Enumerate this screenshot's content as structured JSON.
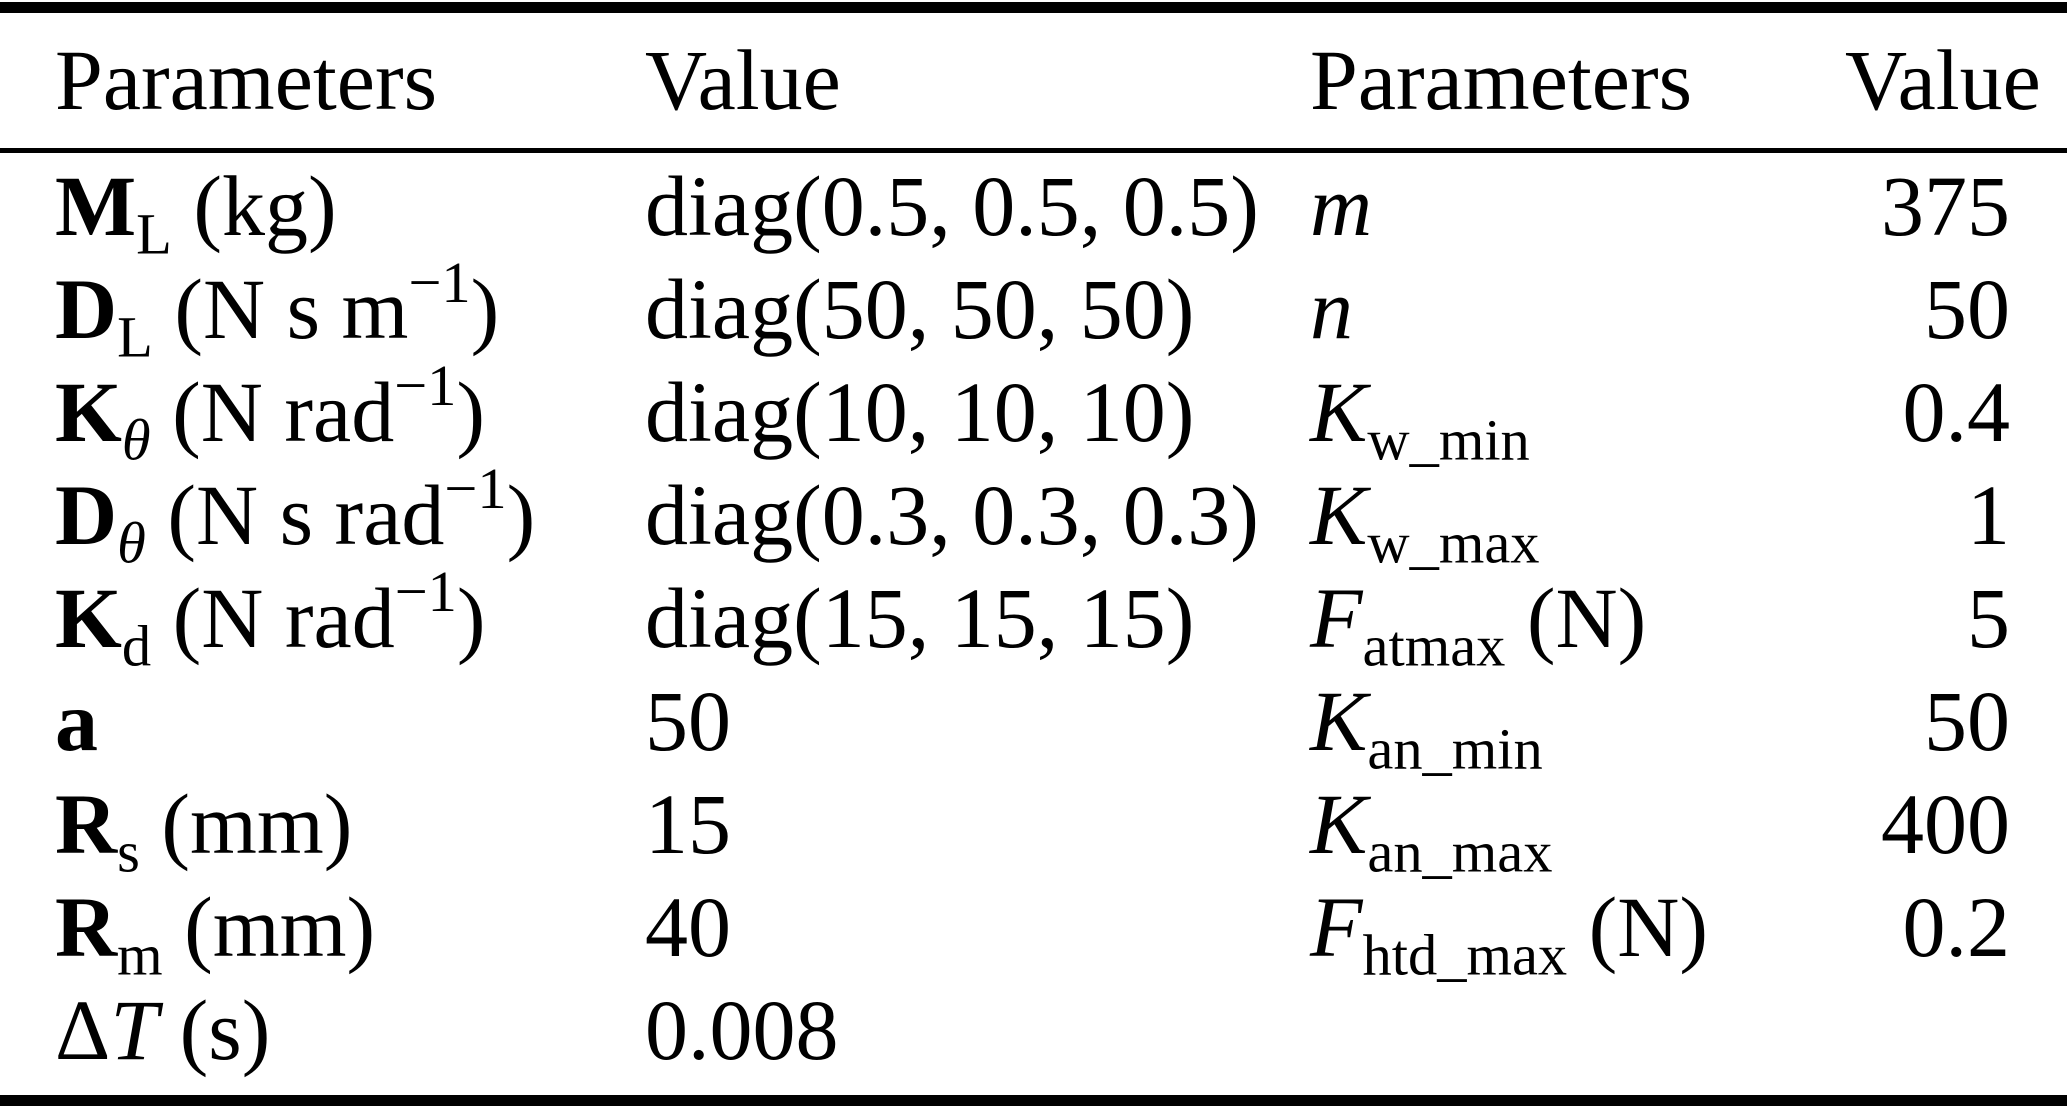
{
  "table": {
    "headers": [
      "Parameters",
      "Value",
      "Parameters",
      "Value"
    ],
    "rows": [
      {
        "left_param": [
          {
            "t": "M",
            "s": "b"
          },
          {
            "t": "L",
            "s": "sub"
          },
          {
            "t": " (kg)",
            "s": "r"
          }
        ],
        "left_value": "diag(0.5, 0.5, 0.5)",
        "right_param": [
          {
            "t": "m",
            "s": "i"
          }
        ],
        "right_value": "375"
      },
      {
        "left_param": [
          {
            "t": "D",
            "s": "b"
          },
          {
            "t": "L",
            "s": "sub"
          },
          {
            "t": " (N s m",
            "s": "r"
          },
          {
            "t": "−1",
            "s": "sup"
          },
          {
            "t": ")",
            "s": "r"
          }
        ],
        "left_value": "diag(50, 50, 50)",
        "right_param": [
          {
            "t": "n",
            "s": "i"
          }
        ],
        "right_value": "50"
      },
      {
        "left_param": [
          {
            "t": "K",
            "s": "b"
          },
          {
            "t": "θ",
            "s": "subi"
          },
          {
            "t": " (N rad",
            "s": "r"
          },
          {
            "t": "−1",
            "s": "sup"
          },
          {
            "t": ")",
            "s": "r"
          }
        ],
        "left_value": "diag(10, 10, 10)",
        "right_param": [
          {
            "t": "K",
            "s": "i"
          },
          {
            "t": "w_min",
            "s": "sub"
          }
        ],
        "right_value": "0.4"
      },
      {
        "left_param": [
          {
            "t": "D",
            "s": "b"
          },
          {
            "t": "θ",
            "s": "subi"
          },
          {
            "t": " (N s rad",
            "s": "r"
          },
          {
            "t": "−1",
            "s": "sup"
          },
          {
            "t": ")",
            "s": "r"
          }
        ],
        "left_value": "diag(0.3, 0.3, 0.3)",
        "right_param": [
          {
            "t": "K",
            "s": "i"
          },
          {
            "t": "w_max",
            "s": "sub"
          }
        ],
        "right_value": "1"
      },
      {
        "left_param": [
          {
            "t": "K",
            "s": "b"
          },
          {
            "t": "d",
            "s": "sub"
          },
          {
            "t": " (N rad",
            "s": "r"
          },
          {
            "t": "−1",
            "s": "sup"
          },
          {
            "t": ")",
            "s": "r"
          }
        ],
        "left_value": "diag(15, 15, 15)",
        "right_param": [
          {
            "t": "F",
            "s": "i"
          },
          {
            "t": "atmax",
            "s": "sub"
          },
          {
            "t": " (N)",
            "s": "r"
          }
        ],
        "right_value": "5"
      },
      {
        "left_param": [
          {
            "t": "a",
            "s": "b"
          }
        ],
        "left_value": "50",
        "right_param": [
          {
            "t": "K",
            "s": "i"
          },
          {
            "t": "an_min",
            "s": "sub"
          }
        ],
        "right_value": "50"
      },
      {
        "left_param": [
          {
            "t": "R",
            "s": "b"
          },
          {
            "t": "s",
            "s": "sub"
          },
          {
            "t": " (mm)",
            "s": "r"
          }
        ],
        "left_value": "15",
        "right_param": [
          {
            "t": "K",
            "s": "i"
          },
          {
            "t": "an_max",
            "s": "sub"
          }
        ],
        "right_value": "400"
      },
      {
        "left_param": [
          {
            "t": "R",
            "s": "b"
          },
          {
            "t": "m",
            "s": "sub"
          },
          {
            "t": " (mm)",
            "s": "r"
          }
        ],
        "left_value": "40",
        "right_param": [
          {
            "t": "F",
            "s": "i"
          },
          {
            "t": "htd_max",
            "s": "sub"
          },
          {
            "t": " (N)",
            "s": "r"
          }
        ],
        "right_value": "0.2"
      },
      {
        "left_param": [
          {
            "t": "Δ",
            "s": "r"
          },
          {
            "t": "T",
            "s": "i"
          },
          {
            "t": " (s)",
            "s": "r"
          }
        ],
        "left_value": "0.008",
        "right_param": null,
        "right_value": null
      }
    ]
  },
  "colors": {
    "text": "#000000",
    "rule": "#000000",
    "background": "#ffffff"
  }
}
